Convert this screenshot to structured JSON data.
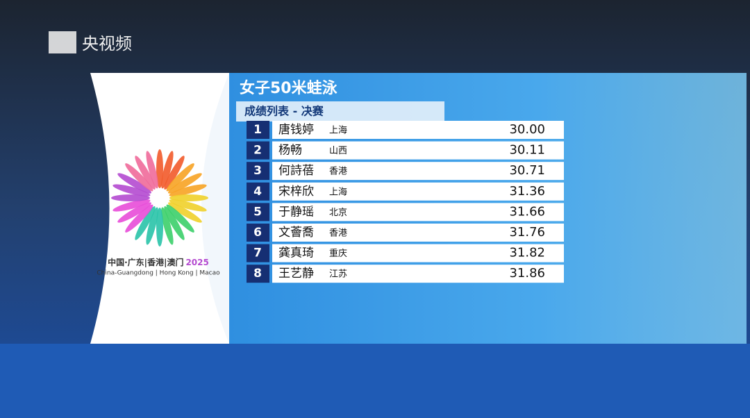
{
  "watermark": "央视频",
  "logo": {
    "line1": "中国·广东|香港|澳门",
    "year": "2025",
    "line2": "China-Guangdong | Hong Kong | Macao"
  },
  "header": {
    "title": "女子50米蛙泳",
    "subtitle": "成绩列表 - 决赛"
  },
  "table": {
    "rows": [
      [
        1,
        "唐钱婷",
        "上海",
        "30.00"
      ],
      [
        2,
        "杨畅",
        "山西",
        "30.11"
      ],
      [
        3,
        "何詩蓓",
        "香港",
        "30.71"
      ],
      [
        4,
        "宋梓欣",
        "上海",
        "31.36"
      ],
      [
        5,
        "于静瑶",
        "北京",
        "31.66"
      ],
      [
        6,
        "文薈喬",
        "香港",
        "31.76"
      ],
      [
        7,
        "龚真琦",
        "重庆",
        "31.82"
      ],
      [
        8,
        "王艺静",
        "江苏",
        "31.86"
      ]
    ]
  }
}
